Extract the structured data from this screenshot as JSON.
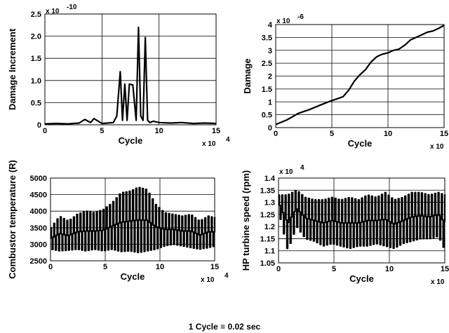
{
  "footnote": "1 Cycle ≡ 0.02 sec",
  "chart_data": [
    {
      "type": "line",
      "xlabel": "Cycle",
      "ylabel": "Damage Increment",
      "x_multiplier": "x 10",
      "x_exponent": "4",
      "y_multiplier": "x 10",
      "y_exponent": "-10",
      "xlim": [
        0,
        15
      ],
      "ylim": [
        0,
        2.5
      ],
      "xticks": [
        "0",
        "5",
        "10",
        "15"
      ],
      "yticks": [
        "0",
        "0.5",
        "1.0",
        "1.5",
        "2.0",
        "2.5"
      ],
      "grid": true,
      "series": [
        {
          "values_description": "spikes",
          "x": [
            0,
            1,
            2,
            3,
            3.5,
            4,
            4.3,
            5,
            6,
            6.3,
            6.6,
            6.8,
            7.0,
            7.2,
            7.4,
            7.7,
            8.0,
            8.2,
            8.4,
            8.6,
            8.8,
            9.0,
            9.2,
            9.5,
            10,
            11,
            12,
            13,
            14,
            15
          ],
          "y": [
            0.02,
            0.03,
            0.02,
            0.04,
            0.12,
            0.05,
            0.14,
            0.03,
            0.05,
            0.2,
            1.2,
            0.1,
            0.92,
            0.1,
            0.92,
            0.9,
            0.1,
            2.2,
            0.2,
            0.1,
            1.97,
            0.1,
            0.05,
            0.08,
            0.05,
            0.04,
            0.05,
            0.03,
            0.04,
            0.03
          ]
        }
      ]
    },
    {
      "type": "line",
      "xlabel": "Cycle",
      "ylabel": "Damage",
      "x_multiplier": "x 10",
      "x_exponent": "4",
      "y_multiplier": "x 10",
      "y_exponent": "-6",
      "xlim": [
        0,
        15
      ],
      "ylim": [
        0,
        4
      ],
      "xticks": [
        "0",
        "5",
        "10",
        "15"
      ],
      "yticks": [
        "0",
        "0.5",
        "1",
        "1.5",
        "2",
        "2.5",
        "3",
        "3.5",
        "4"
      ],
      "grid": true,
      "series": [
        {
          "x": [
            0,
            1,
            2,
            3,
            4,
            5,
            5.5,
            6,
            6.5,
            7,
            7.5,
            8,
            8.5,
            9,
            9.5,
            10,
            10.5,
            11,
            11.5,
            12,
            12.5,
            13,
            13.5,
            14,
            14.5,
            15
          ],
          "y": [
            0.12,
            0.3,
            0.55,
            0.7,
            0.88,
            1.05,
            1.12,
            1.2,
            1.45,
            1.8,
            2.05,
            2.25,
            2.55,
            2.75,
            2.85,
            2.9,
            3.0,
            3.05,
            3.2,
            3.4,
            3.5,
            3.6,
            3.7,
            3.75,
            3.85,
            3.97
          ]
        }
      ]
    },
    {
      "type": "line",
      "xlabel": "Cycle",
      "ylabel": "Combustor temperature (R)",
      "x_multiplier": "x 10",
      "x_exponent": "4",
      "xlim": [
        0,
        15
      ],
      "ylim": [
        2500,
        5000
      ],
      "xticks": [
        "0",
        "5",
        "10",
        "15"
      ],
      "yticks": [
        "2500",
        "3000",
        "3500",
        "4000",
        "4500",
        "5000"
      ],
      "grid": true,
      "series": [
        {
          "x": [
            0,
            0.8,
            1.6,
            2.4,
            3.2,
            4,
            4.8,
            5.6,
            6.4,
            7.2,
            8,
            8.8,
            9.6,
            10.4,
            11.2,
            12,
            12.8,
            13.6,
            14.4,
            15
          ],
          "high": [
            3500,
            3850,
            3700,
            3900,
            4000,
            3950,
            4050,
            4250,
            4550,
            4600,
            4720,
            4650,
            4200,
            3950,
            3900,
            3850,
            3900,
            3700,
            3850,
            3800
          ],
          "low": [
            2850,
            2800,
            2820,
            2850,
            2800,
            2850,
            2800,
            2850,
            2780,
            2800,
            2750,
            2800,
            2850,
            2950,
            3000,
            2950,
            2900,
            2850,
            2900,
            2950
          ]
        }
      ]
    },
    {
      "type": "line",
      "xlabel": "Cycle",
      "ylabel": "HP turbine speed (rpm)",
      "x_multiplier": "x 10",
      "x_exponent": "4",
      "y_multiplier": "x 10",
      "y_exponent": "4",
      "xlim": [
        0,
        15
      ],
      "ylim": [
        1.05,
        1.4
      ],
      "xticks": [
        "0",
        "5",
        "10",
        "15"
      ],
      "yticks": [
        "1.05",
        "1.1",
        "1.15",
        "1.2",
        "1.25",
        "1.3",
        "1.35",
        "1.4"
      ],
      "grid": true,
      "series": [
        {
          "x": [
            0,
            0.8,
            1.6,
            2.4,
            3.2,
            4,
            4.8,
            5.6,
            6.4,
            7.2,
            8,
            8.8,
            9.6,
            10.4,
            11.2,
            12,
            12.8,
            13.6,
            14.4,
            15
          ],
          "high": [
            1.33,
            1.33,
            1.35,
            1.32,
            1.31,
            1.31,
            1.32,
            1.31,
            1.32,
            1.31,
            1.33,
            1.32,
            1.34,
            1.31,
            1.32,
            1.34,
            1.34,
            1.33,
            1.34,
            1.33
          ],
          "low": [
            1.26,
            1.1,
            1.2,
            1.15,
            1.14,
            1.12,
            1.13,
            1.12,
            1.11,
            1.12,
            1.12,
            1.13,
            1.12,
            1.11,
            1.13,
            1.14,
            1.15,
            1.15,
            1.16,
            1.1
          ]
        }
      ]
    }
  ]
}
